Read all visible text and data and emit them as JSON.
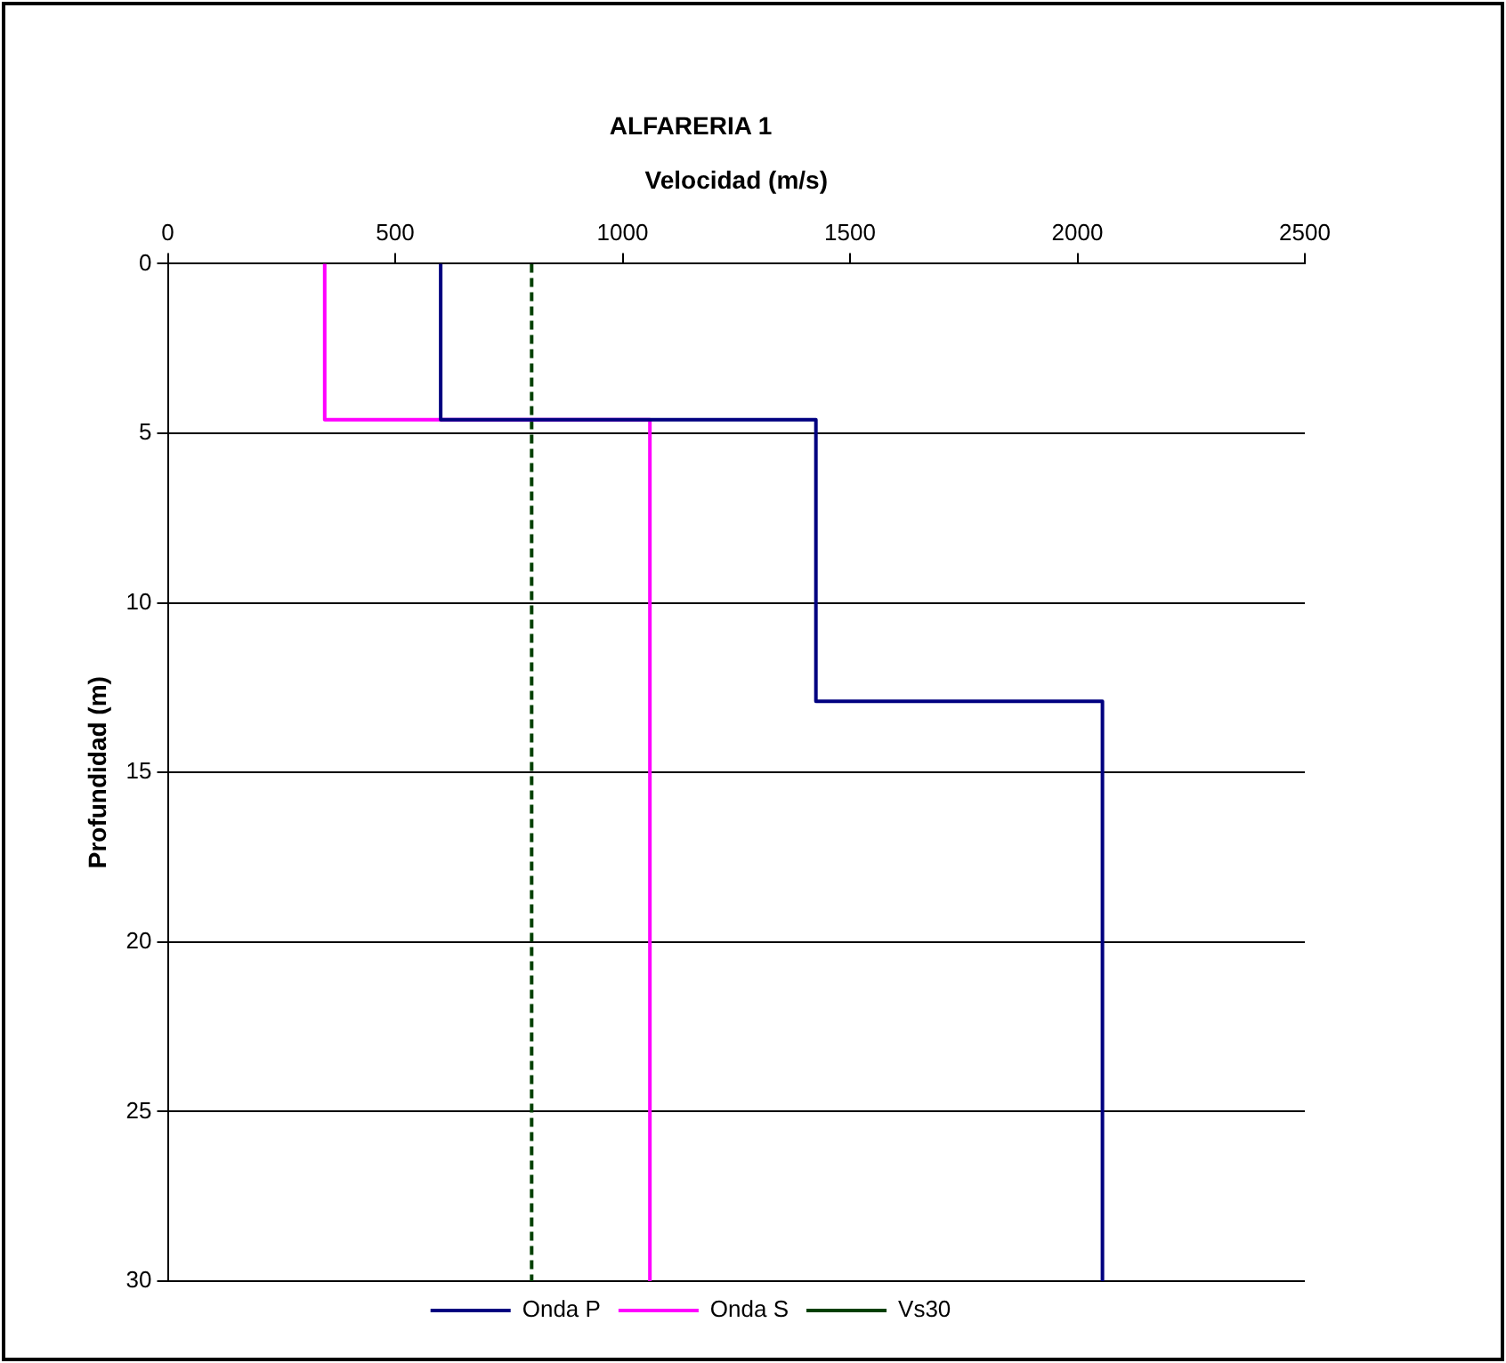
{
  "chart_data": {
    "type": "line",
    "title": "ALFARERIA 1",
    "xlabel": "Velocidad (m/s)",
    "ylabel": "Profundidad (m)",
    "xlim": [
      0,
      2500
    ],
    "xticks": [
      0,
      500,
      1000,
      1500,
      2000,
      2500
    ],
    "ylim": [
      30,
      0
    ],
    "yticks": [
      0,
      5,
      10,
      15,
      20,
      25,
      30
    ],
    "grid": "y",
    "legend": "bottom",
    "marker": "none",
    "series": [
      {
        "name": "Onda P",
        "color": "#000080",
        "x": [
          600,
          600,
          1425,
          1425,
          2055,
          2055
        ],
        "values": [
          0,
          4.6,
          4.6,
          12.9,
          12.9,
          30
        ]
      },
      {
        "name": "Onda S",
        "color": "#ff00ff",
        "x": [
          345,
          345,
          1060,
          1060
        ],
        "values": [
          0,
          4.6,
          4.6,
          30
        ]
      },
      {
        "name": "Vs30",
        "color": "#004000",
        "line_style": "dashed",
        "x": [
          800,
          800
        ],
        "values": [
          0,
          30
        ]
      }
    ]
  }
}
